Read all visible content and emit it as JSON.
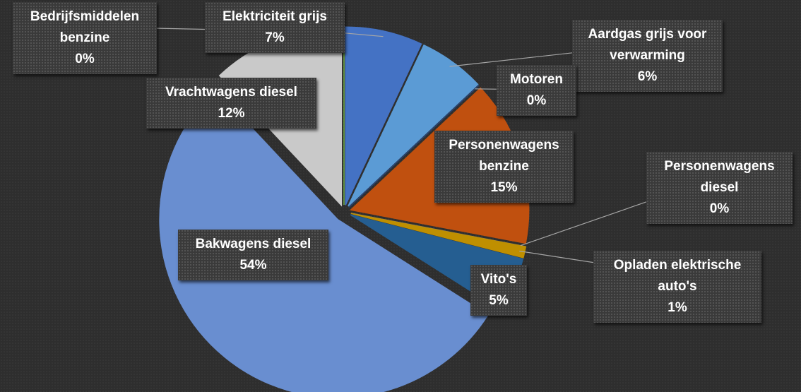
{
  "chart_data": {
    "type": "pie",
    "categories": [
      "Elektriciteit grijs",
      "Aardgas grijs voor verwarming",
      "Motoren",
      "Personenwagens benzine",
      "Personenwagens diesel",
      "Opladen elektrische auto's",
      "Vito's",
      "Bakwagens diesel",
      "Vrachtwagens diesel",
      "Bedrijfsmiddelen benzine"
    ],
    "values": [
      7,
      6,
      0,
      15,
      0,
      1,
      5,
      54,
      12,
      0
    ],
    "value_labels": [
      "7%",
      "6%",
      "0%",
      "15%",
      "0%",
      "1%",
      "5%",
      "54%",
      "12%",
      "0%"
    ],
    "colors": [
      "#4472c4",
      "#5b9bd5",
      "#264478",
      "#c0500f",
      "#7f7f7f",
      "#bf8f00",
      "#255e91",
      "#698ed0",
      "#c9c9c9",
      "#70ad47"
    ]
  }
}
